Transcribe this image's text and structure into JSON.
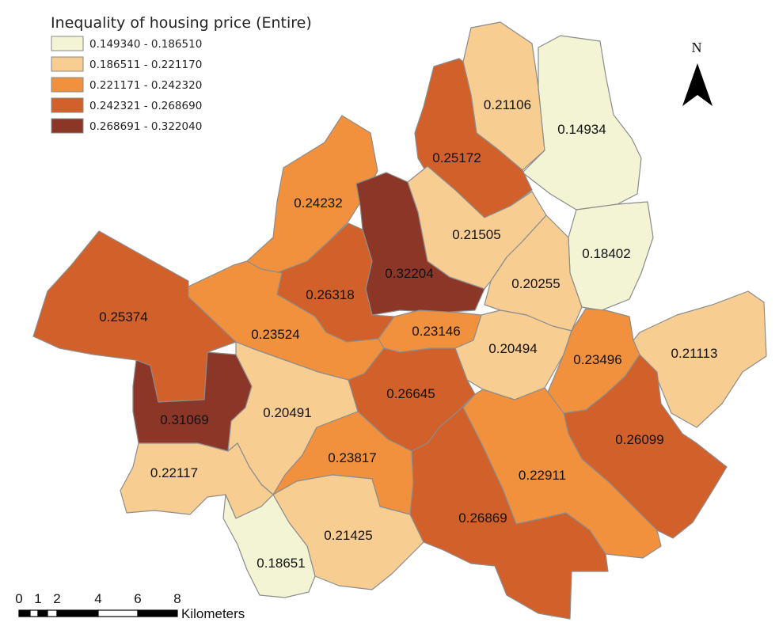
{
  "legend": {
    "title": "Inequality of housing price (Entire)",
    "classes": [
      {
        "range": "0.149340 - 0.186510",
        "color": "#f2f4d3"
      },
      {
        "range": "0.186511 - 0.221170",
        "color": "#f7cd91"
      },
      {
        "range": "0.221171 - 0.242320",
        "color": "#f1913e"
      },
      {
        "range": "0.242321 - 0.268690",
        "color": "#d2602a"
      },
      {
        "range": "0.268691 - 0.322040",
        "color": "#8c3628"
      }
    ]
  },
  "districts": [
    {
      "value": "0.21106",
      "class": 1
    },
    {
      "value": "0.14934",
      "class": 0
    },
    {
      "value": "0.25172",
      "class": 3
    },
    {
      "value": "0.24232",
      "class": 2
    },
    {
      "value": "0.32204",
      "class": 4
    },
    {
      "value": "0.21505",
      "class": 1
    },
    {
      "value": "0.18402",
      "class": 0
    },
    {
      "value": "0.26318",
      "class": 3
    },
    {
      "value": "0.20255",
      "class": 1
    },
    {
      "value": "0.25374",
      "class": 3
    },
    {
      "value": "0.23524",
      "class": 2
    },
    {
      "value": "0.23146",
      "class": 2
    },
    {
      "value": "0.20494",
      "class": 1
    },
    {
      "value": "0.23496",
      "class": 2
    },
    {
      "value": "0.21113",
      "class": 1
    },
    {
      "value": "0.26645",
      "class": 3
    },
    {
      "value": "0.31069",
      "class": 4
    },
    {
      "value": "0.20491",
      "class": 1
    },
    {
      "value": "0.26099",
      "class": 3
    },
    {
      "value": "0.23817",
      "class": 2
    },
    {
      "value": "0.22911",
      "class": 2
    },
    {
      "value": "0.22117",
      "class": 1
    },
    {
      "value": "0.26869",
      "class": 3
    },
    {
      "value": "0.21425",
      "class": 1
    },
    {
      "value": "0.18651",
      "class": 0
    }
  ],
  "north_arrow": {
    "label": "N",
    "icon": "north-arrow-icon"
  },
  "scale_bar": {
    "ticks": [
      "0",
      "1",
      "2",
      "4",
      "6",
      "8"
    ],
    "unit": "Kilometers"
  }
}
